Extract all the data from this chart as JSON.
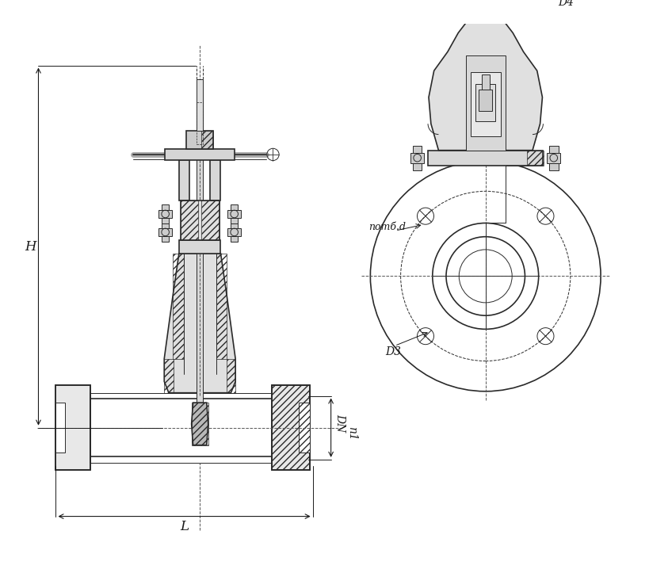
{
  "bg_color": "#ffffff",
  "line_color": "#2a2a2a",
  "hatch_color": "#2a2a2a",
  "dim_color": "#1a1a1a",
  "fig_width": 8.19,
  "fig_height": 7.18,
  "dpi": 100,
  "labels": {
    "H": "H",
    "L": "L",
    "DN": "DN",
    "D1": "n1",
    "D3": "D3",
    "D4": "D4",
    "nomb_d": "nomб.d"
  }
}
